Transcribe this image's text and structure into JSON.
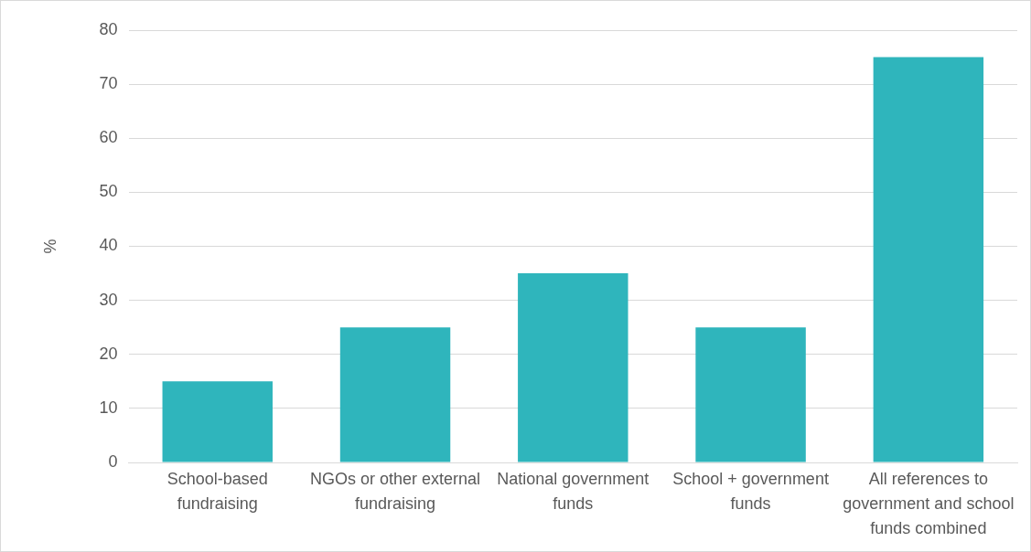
{
  "chart_data": {
    "type": "bar",
    "ylabel": "%",
    "categories": [
      "School-based fundraising",
      "NGOs or other external fundraising",
      "National government funds",
      "School + government funds",
      "All references to government and school funds combined"
    ],
    "values": [
      15,
      25,
      35,
      25,
      75
    ],
    "color": "#2fb5bc",
    "ylim": [
      0,
      80
    ],
    "yticks": [
      0,
      10,
      20,
      30,
      40,
      50,
      60,
      70,
      80
    ],
    "grid": "y",
    "legend": false
  }
}
